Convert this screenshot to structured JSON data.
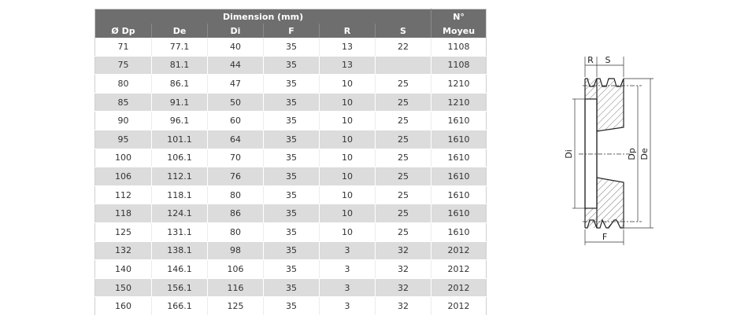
{
  "table": {
    "group_header": "Dimension (mm)",
    "hub_header": [
      "N°",
      "Moyeu"
    ],
    "columns": [
      "Ø Dp",
      "De",
      "Di",
      "F",
      "R",
      "S"
    ],
    "rows": [
      [
        "71",
        "77.1",
        "40",
        "35",
        "13",
        "22",
        "1108"
      ],
      [
        "75",
        "81.1",
        "44",
        "35",
        "13",
        "",
        "1108"
      ],
      [
        "80",
        "86.1",
        "47",
        "35",
        "10",
        "25",
        "1210"
      ],
      [
        "85",
        "91.1",
        "50",
        "35",
        "10",
        "25",
        "1210"
      ],
      [
        "90",
        "96.1",
        "60",
        "35",
        "10",
        "25",
        "1610"
      ],
      [
        "95",
        "101.1",
        "64",
        "35",
        "10",
        "25",
        "1610"
      ],
      [
        "100",
        "106.1",
        "70",
        "35",
        "10",
        "25",
        "1610"
      ],
      [
        "106",
        "112.1",
        "76",
        "35",
        "10",
        "25",
        "1610"
      ],
      [
        "112",
        "118.1",
        "80",
        "35",
        "10",
        "25",
        "1610"
      ],
      [
        "118",
        "124.1",
        "86",
        "35",
        "10",
        "25",
        "1610"
      ],
      [
        "125",
        "131.1",
        "80",
        "35",
        "10",
        "25",
        "1610"
      ],
      [
        "132",
        "138.1",
        "98",
        "35",
        "3",
        "32",
        "2012"
      ],
      [
        "140",
        "146.1",
        "106",
        "35",
        "3",
        "32",
        "2012"
      ],
      [
        "150",
        "156.1",
        "116",
        "35",
        "3",
        "32",
        "2012"
      ],
      [
        "160",
        "166.1",
        "125",
        "35",
        "3",
        "32",
        "2012"
      ]
    ]
  },
  "diagram": {
    "labels": {
      "r": "R",
      "s": "S",
      "di": "Di",
      "dp": "Dp",
      "de": "De",
      "f": "F"
    }
  }
}
